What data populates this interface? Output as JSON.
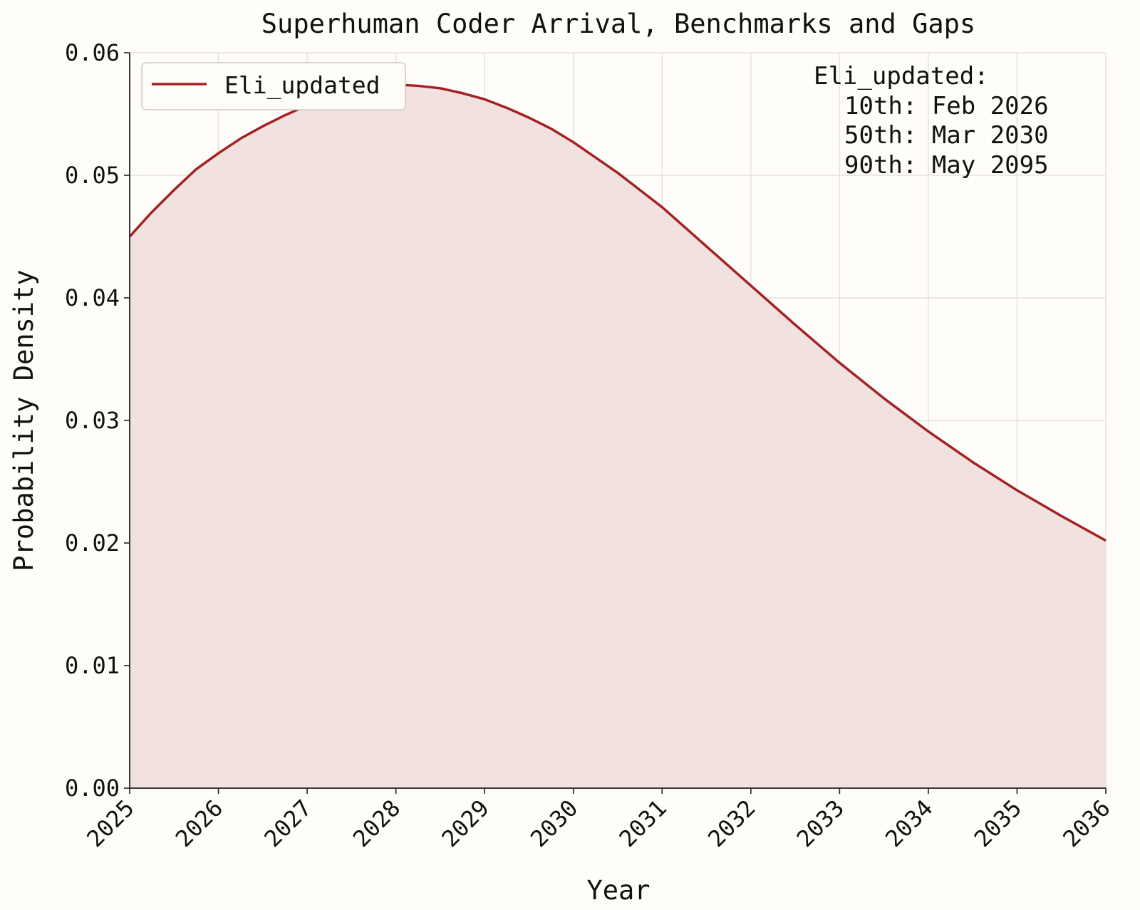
{
  "chart_data": {
    "type": "area",
    "title": "Superhuman Coder Arrival, Benchmarks and Gaps",
    "xlabel": "Year",
    "ylabel": "Probability Density",
    "xlim": [
      2025,
      2036
    ],
    "ylim": [
      0,
      0.06
    ],
    "x_ticks": [
      "2025",
      "2026",
      "2027",
      "2028",
      "2029",
      "2030",
      "2031",
      "2032",
      "2033",
      "2034",
      "2035",
      "2036"
    ],
    "y_ticks": [
      "0.00",
      "0.01",
      "0.02",
      "0.03",
      "0.04",
      "0.05",
      "0.06"
    ],
    "grid": true,
    "legend_position": "top-left",
    "series": [
      {
        "name": "Eli_updated",
        "color": "#a32224",
        "fill_color": "#f2e2df",
        "x": [
          2025.0,
          2025.25,
          2025.5,
          2025.75,
          2026.0,
          2026.25,
          2026.5,
          2026.75,
          2027.0,
          2027.25,
          2027.5,
          2027.75,
          2028.0,
          2028.25,
          2028.5,
          2028.75,
          2029.0,
          2029.25,
          2029.5,
          2029.75,
          2030.0,
          2030.5,
          2031.0,
          2031.5,
          2032.0,
          2032.5,
          2033.0,
          2033.5,
          2034.0,
          2034.5,
          2035.0,
          2035.5,
          2036.0
        ],
        "y": [
          0.045,
          0.047,
          0.0488,
          0.0505,
          0.0518,
          0.053,
          0.054,
          0.0549,
          0.0557,
          0.0564,
          0.0569,
          0.0572,
          0.0574,
          0.0573,
          0.0571,
          0.0567,
          0.0562,
          0.0555,
          0.0547,
          0.0538,
          0.0527,
          0.0502,
          0.0474,
          0.0442,
          0.041,
          0.0378,
          0.0347,
          0.0318,
          0.0291,
          0.0266,
          0.0243,
          0.0222,
          0.0202
        ]
      }
    ],
    "annotation": {
      "header": "Eli_updated:",
      "lines": [
        "10th: Feb 2026",
        "50th: Mar 2030",
        "90th: May 2095"
      ]
    }
  }
}
